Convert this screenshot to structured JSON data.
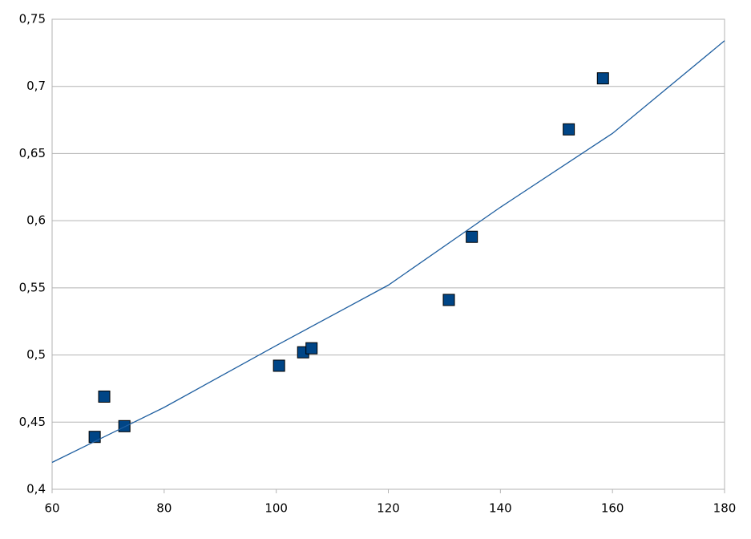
{
  "chart_data": {
    "type": "scatter",
    "xlim": [
      60,
      180
    ],
    "ylim": [
      0.4,
      0.75
    ],
    "xticks": [
      60,
      80,
      100,
      120,
      140,
      160,
      180
    ],
    "yticks": [
      {
        "value": 0.4,
        "label": "0,4"
      },
      {
        "value": 0.45,
        "label": "0,45"
      },
      {
        "value": 0.5,
        "label": "0,5"
      },
      {
        "value": 0.55,
        "label": "0,55"
      },
      {
        "value": 0.6,
        "label": "0,6"
      },
      {
        "value": 0.65,
        "label": "0,65"
      },
      {
        "value": 0.7,
        "label": "0,7"
      },
      {
        "value": 0.75,
        "label": "0,75"
      }
    ],
    "grid": true,
    "series": [
      {
        "style": "markers",
        "color": "#004586",
        "x": [
          67.6,
          69.3,
          72.9,
          100.5,
          104.8,
          106.3,
          130.8,
          134.9,
          152.2,
          158.3
        ],
        "values": [
          0.439,
          0.469,
          0.447,
          0.492,
          0.502,
          0.505,
          0.541,
          0.588,
          0.668,
          0.706
        ]
      },
      {
        "style": "line",
        "color": "#1f5fa0",
        "x": [
          60,
          80,
          100,
          120,
          140,
          160,
          180
        ],
        "values": [
          0.42,
          0.461,
          0.507,
          0.552,
          0.61,
          0.665,
          0.734
        ]
      }
    ]
  }
}
